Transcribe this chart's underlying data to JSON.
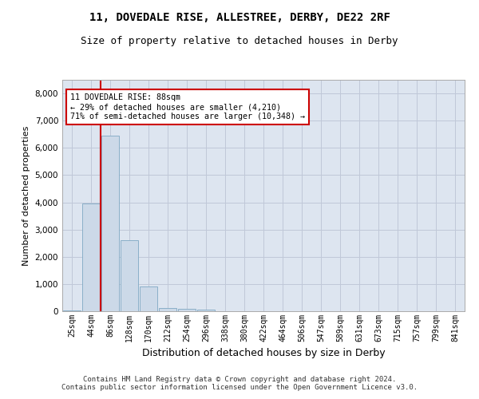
{
  "title_line1": "11, DOVEDALE RISE, ALLESTREE, DERBY, DE22 2RF",
  "title_line2": "Size of property relative to detached houses in Derby",
  "xlabel": "Distribution of detached houses by size in Derby",
  "ylabel": "Number of detached properties",
  "categories": [
    "25sqm",
    "44sqm",
    "86sqm",
    "128sqm",
    "170sqm",
    "212sqm",
    "254sqm",
    "296sqm",
    "338sqm",
    "380sqm",
    "422sqm",
    "464sqm",
    "506sqm",
    "547sqm",
    "589sqm",
    "631sqm",
    "673sqm",
    "715sqm",
    "757sqm",
    "799sqm",
    "841sqm"
  ],
  "values": [
    30,
    3950,
    6450,
    2600,
    900,
    130,
    80,
    50,
    0,
    0,
    0,
    0,
    0,
    0,
    0,
    0,
    0,
    0,
    0,
    0,
    0
  ],
  "bar_color": "#ccd9e8",
  "bar_edge_color": "#8aafc8",
  "vline_x_index": 2,
  "vline_color": "#cc0000",
  "annotation_text": "11 DOVEDALE RISE: 88sqm\n← 29% of detached houses are smaller (4,210)\n71% of semi-detached houses are larger (10,348) →",
  "annotation_box_color": "#ffffff",
  "annotation_box_edge": "#cc0000",
  "ylim": [
    0,
    8500
  ],
  "yticks": [
    0,
    1000,
    2000,
    3000,
    4000,
    5000,
    6000,
    7000,
    8000
  ],
  "grid_color": "#c0c8d8",
  "bg_color": "#dde5f0",
  "footer_line1": "Contains HM Land Registry data © Crown copyright and database right 2024.",
  "footer_line2": "Contains public sector information licensed under the Open Government Licence v3.0."
}
